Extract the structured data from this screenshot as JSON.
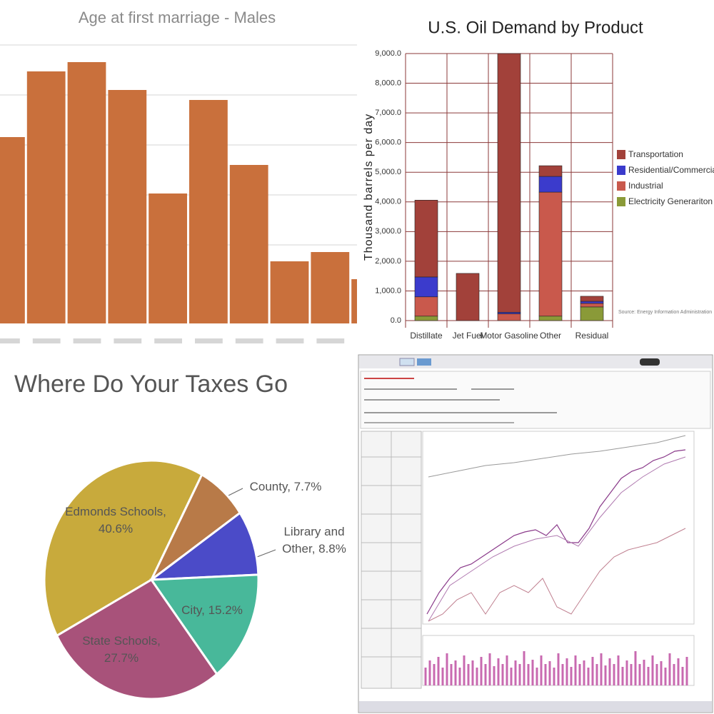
{
  "chart_data": [
    {
      "type": "bar",
      "title": "Age at first marriage - Males",
      "categories": [
        null,
        null,
        null,
        null,
        null,
        null,
        null,
        null,
        null,
        null
      ],
      "values": [
        26.1,
        35.3,
        36.6,
        32.7,
        18.2,
        31.3,
        22.2,
        8.7,
        10.0,
        6.2
      ],
      "color": "#c9703c",
      "ylim": [
        0,
        40
      ],
      "grid_lines": [
        11,
        18,
        25,
        32,
        39
      ],
      "grid": true
    },
    {
      "type": "stacked_bar",
      "title": "U.S. Oil Demand by Product",
      "ylabel": "Thousand barrels per day",
      "categories": [
        "Distillate",
        "Jet Fuel",
        "Motor Gasoline",
        "Other",
        "Residual"
      ],
      "series": [
        {
          "name": "Transportation",
          "color": "#a2413a",
          "values": [
            2590,
            1590,
            8720,
            360,
            170
          ]
        },
        {
          "name": "Residential/Commercial",
          "color": "#3b3bcc",
          "values": [
            670,
            0,
            50,
            530,
            70
          ]
        },
        {
          "name": "Industrial",
          "color": "#c9594c",
          "values": [
            650,
            0,
            230,
            4180,
            120
          ]
        },
        {
          "name": "Electricity Generariton",
          "color": "#8a9a38",
          "values": [
            150,
            0,
            0,
            150,
            460
          ]
        }
      ],
      "ylim": [
        0,
        9000
      ],
      "yticks": [
        {
          "value": 0,
          "label": "0.0"
        },
        {
          "value": 1000,
          "label": "1,000.0"
        },
        {
          "value": 2000,
          "label": "2,000.0"
        },
        {
          "value": 3000,
          "label": "3,000.0"
        },
        {
          "value": 4000,
          "label": "4,000.0"
        },
        {
          "value": 5000,
          "label": "5,000.0"
        },
        {
          "value": 6000,
          "label": "6,000.0"
        },
        {
          "value": 7000,
          "label": "7,000.0"
        },
        {
          "value": 8000,
          "label": "8,000.0"
        },
        {
          "value": 9000,
          "label": "9,000.0"
        }
      ],
      "grid": true,
      "legend": "right",
      "source": "Source:  Energy Information Administration"
    },
    {
      "type": "pie",
      "title": "Where Do Your Taxes Go",
      "labels": [
        "Edmonds Schools, 40.6%",
        "County, 7.7%",
        "Library and Other, 8.8%",
        "City, 15.2%",
        "State Schools, 27.7%"
      ],
      "values": [
        40.6,
        7.7,
        8.8,
        15.2,
        27.7
      ],
      "colors": [
        "#c8aa3c",
        "#b87a48",
        "#4b4bc8",
        "#48b89a",
        "#a8527a"
      ]
    }
  ]
}
